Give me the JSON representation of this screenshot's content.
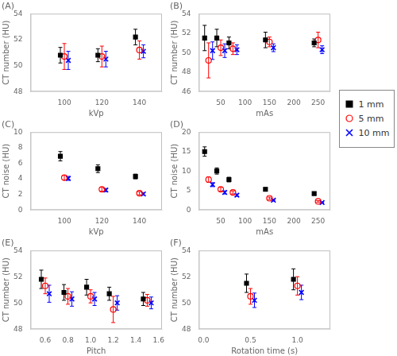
{
  "chart_data": [
    {
      "type": "scatter",
      "title": "(A)",
      "xlabel": "kVp",
      "ylabel": "CT number (HU)",
      "xlim": [
        82,
        152
      ],
      "ylim": [
        48,
        54
      ],
      "xticks": [
        100,
        120,
        140
      ],
      "yticks": [
        48,
        50,
        52,
        54
      ],
      "grid": false,
      "x": [
        100,
        120,
        140
      ],
      "series": [
        {
          "name": "1 mm",
          "color": "black",
          "marker": "square",
          "values": [
            50.8,
            50.8,
            52.2
          ],
          "errors": [
            0.6,
            0.5,
            0.6
          ]
        },
        {
          "name": "5 mm",
          "color": "red",
          "marker": "open-circle",
          "values": [
            50.7,
            50.7,
            51.2
          ],
          "errors": [
            1.0,
            0.8,
            0.7
          ]
        },
        {
          "name": "10 mm",
          "color": "blue",
          "marker": "x",
          "values": [
            50.4,
            50.5,
            51.1
          ],
          "errors": [
            0.7,
            0.6,
            0.5
          ]
        }
      ]
    },
    {
      "type": "scatter",
      "title": "(B)",
      "xlabel": "mAs",
      "ylabel": "CT number (HU)",
      "xlim": [
        5,
        275
      ],
      "ylim": [
        46,
        54
      ],
      "xticks": [
        50,
        100,
        150,
        200,
        250
      ],
      "yticks": [
        46,
        48,
        50,
        52,
        54
      ],
      "grid": false,
      "legend": "right",
      "x": [
        25,
        50,
        75,
        150,
        250
      ],
      "series": [
        {
          "name": "1 mm",
          "color": "black",
          "marker": "square",
          "values": [
            51.5,
            51.5,
            51.0,
            51.3,
            51.0
          ],
          "errors": [
            1.3,
            0.9,
            0.6,
            0.8,
            0.4
          ]
        },
        {
          "name": "5 mm",
          "color": "red",
          "marker": "open-circle",
          "values": [
            49.2,
            50.5,
            50.4,
            51.1,
            51.3
          ],
          "errors": [
            1.8,
            0.8,
            0.6,
            0.5,
            0.8
          ]
        },
        {
          "name": "10 mm",
          "color": "blue",
          "marker": "x",
          "values": [
            50.2,
            50.2,
            50.3,
            50.5,
            50.3
          ],
          "errors": [
            0.9,
            0.7,
            0.5,
            0.4,
            0.4
          ]
        }
      ]
    },
    {
      "type": "scatter",
      "title": "(C)",
      "xlabel": "kVp",
      "ylabel": "CT noise (HU)",
      "xlim": [
        82,
        152
      ],
      "ylim": [
        0,
        10
      ],
      "xticks": [
        100,
        120,
        140
      ],
      "yticks": [
        0,
        2,
        4,
        6,
        8,
        10
      ],
      "grid": false,
      "x": [
        100,
        120,
        140
      ],
      "series": [
        {
          "name": "1 mm",
          "color": "black",
          "marker": "square",
          "values": [
            6.9,
            5.3,
            4.3
          ],
          "errors": [
            0.6,
            0.5,
            0.3
          ]
        },
        {
          "name": "5 mm",
          "color": "red",
          "marker": "open-circle",
          "values": [
            4.15,
            2.65,
            2.15
          ],
          "errors": [
            0.3,
            0.25,
            0.2
          ]
        },
        {
          "name": "10 mm",
          "color": "blue",
          "marker": "x",
          "values": [
            4.05,
            2.55,
            2.05
          ],
          "errors": [
            0.25,
            0.2,
            0.15
          ]
        }
      ]
    },
    {
      "type": "scatter",
      "title": "(D)",
      "xlabel": "mAs",
      "ylabel": "CT noise (HU)",
      "xlim": [
        5,
        275
      ],
      "ylim": [
        0,
        20
      ],
      "xticks": [
        50,
        100,
        150,
        200,
        250
      ],
      "yticks": [
        0,
        5,
        10,
        15,
        20
      ],
      "grid": false,
      "x": [
        25,
        50,
        75,
        150,
        250
      ],
      "series": [
        {
          "name": "1 mm",
          "color": "black",
          "marker": "square",
          "values": [
            15.0,
            10.0,
            7.8,
            5.3,
            4.2
          ],
          "errors": [
            1.2,
            0.8,
            0.6,
            0.4,
            0.3
          ]
        },
        {
          "name": "5 mm",
          "color": "red",
          "marker": "open-circle",
          "values": [
            7.8,
            5.3,
            4.5,
            3.0,
            2.2
          ],
          "errors": [
            0.7,
            0.5,
            0.4,
            0.3,
            0.2
          ]
        },
        {
          "name": "10 mm",
          "color": "blue",
          "marker": "x",
          "values": [
            6.5,
            4.5,
            3.8,
            2.5,
            1.9
          ],
          "errors": [
            0.5,
            0.4,
            0.3,
            0.2,
            0.15
          ]
        }
      ]
    },
    {
      "type": "scatter",
      "title": "(E)",
      "xlabel": "Pitch",
      "ylabel": "CT number (HU)",
      "xlim": [
        0.47,
        1.63
      ],
      "ylim": [
        48,
        54
      ],
      "xticks": [
        0.6,
        0.8,
        {
          "value": 1.0,
          "label": "1.0"
        },
        1.2,
        1.4,
        1.6
      ],
      "yticks": [
        48,
        50,
        52,
        54
      ],
      "grid": false,
      "x": [
        0.6,
        0.8,
        1.0,
        1.2,
        1.5
      ],
      "series": [
        {
          "name": "1 mm",
          "color": "black",
          "marker": "square",
          "values": [
            51.8,
            50.8,
            51.2,
            50.7,
            50.3
          ],
          "errors": [
            0.7,
            0.6,
            0.6,
            0.5,
            0.5
          ]
        },
        {
          "name": "5 mm",
          "color": "red",
          "marker": "open-circle",
          "values": [
            51.3,
            50.5,
            50.5,
            49.5,
            50.2
          ],
          "errors": [
            0.6,
            0.6,
            0.5,
            1.0,
            0.45
          ]
        },
        {
          "name": "10 mm",
          "color": "blue",
          "marker": "x",
          "values": [
            50.7,
            50.3,
            50.3,
            50.0,
            50.0
          ],
          "errors": [
            0.65,
            0.55,
            0.5,
            0.55,
            0.45
          ]
        }
      ]
    },
    {
      "type": "scatter",
      "title": "(F)",
      "xlabel": "Rotation time (s)",
      "ylabel": "CT number (HU)",
      "xlim": [
        -0.05,
        1.35
      ],
      "ylim": [
        48,
        54
      ],
      "xticks": [
        {
          "value": 0.0,
          "label": "0.0"
        },
        0.5,
        {
          "value": 1.0,
          "label": "1.0"
        }
      ],
      "yticks": [
        48,
        50,
        52,
        54
      ],
      "grid": false,
      "x": [
        0.5,
        1.0
      ],
      "series": [
        {
          "name": "1 mm",
          "color": "black",
          "marker": "square",
          "values": [
            51.5,
            51.8
          ],
          "errors": [
            0.7,
            0.8
          ]
        },
        {
          "name": "5 mm",
          "color": "red",
          "marker": "open-circle",
          "values": [
            50.5,
            51.3
          ],
          "errors": [
            0.6,
            0.7
          ]
        },
        {
          "name": "10 mm",
          "color": "blue",
          "marker": "x",
          "values": [
            50.2,
            50.8
          ],
          "errors": [
            0.55,
            0.55
          ]
        }
      ]
    }
  ]
}
